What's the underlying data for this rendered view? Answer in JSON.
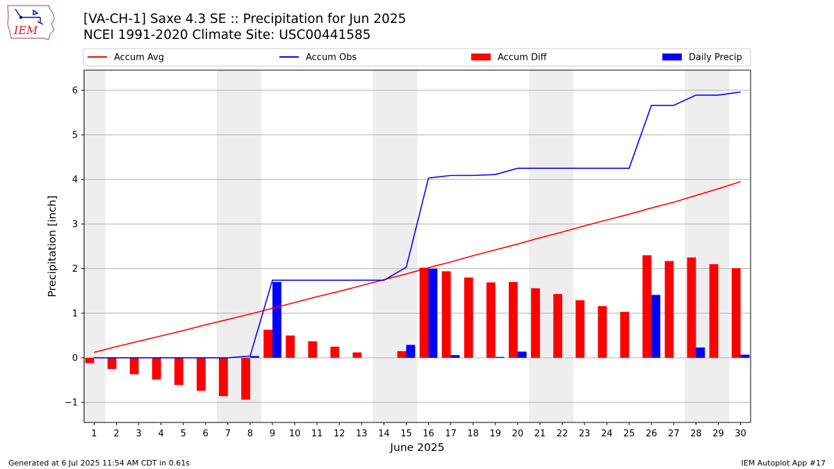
{
  "header": {
    "logo_text": "IEM",
    "title_line1": "[VA-CH-1] Saxe 4.3 SE :: Precipitation for Jun 2025",
    "title_line2": "NCEI 1991-2020 Climate Site: USC00441585"
  },
  "footer": {
    "left": "Generated at 6 Jul 2025 11:54 AM CDT in 0.61s",
    "right": "IEM Autoplot App #17"
  },
  "colors": {
    "accum_avg": "#ff0000",
    "accum_obs": "#0000ff",
    "accum_diff": "#ff0000",
    "daily_precip": "#0000ff",
    "weekend_shade": "#eeeeee",
    "grid": "#b0b0b0"
  },
  "chart_data": {
    "type": "bar",
    "xlabel": "June 2025",
    "ylabel": "Precipitation [inch]",
    "ylim": [
      -1.45,
      6.45
    ],
    "yticks": [
      -1,
      0,
      1,
      2,
      3,
      4,
      5,
      6
    ],
    "ytick_labels": [
      "−1",
      "0",
      "1",
      "2",
      "3",
      "4",
      "5",
      "6"
    ],
    "grid": "horizontal",
    "legend_position": "top",
    "legend": [
      {
        "label": "Accum Avg",
        "kind": "line",
        "series": "accum_avg"
      },
      {
        "label": "Accum Obs",
        "kind": "line",
        "series": "accum_obs"
      },
      {
        "label": "Accum Diff",
        "kind": "bar",
        "series": "accum_diff"
      },
      {
        "label": "Daily Precip",
        "kind": "bar",
        "series": "daily_precip"
      }
    ],
    "shaded_days": [
      [
        1,
        1
      ],
      [
        7,
        8
      ],
      [
        14,
        15
      ],
      [
        21,
        22
      ],
      [
        28,
        29
      ]
    ],
    "days": [
      1,
      2,
      3,
      4,
      5,
      6,
      7,
      8,
      9,
      10,
      11,
      12,
      13,
      14,
      15,
      16,
      17,
      18,
      19,
      20,
      21,
      22,
      23,
      24,
      25,
      26,
      27,
      28,
      29,
      30
    ],
    "series": {
      "accum_avg": [
        0.12,
        0.25,
        0.37,
        0.49,
        0.61,
        0.74,
        0.86,
        0.98,
        1.11,
        1.24,
        1.37,
        1.49,
        1.62,
        1.75,
        1.88,
        2.02,
        2.15,
        2.29,
        2.42,
        2.55,
        2.69,
        2.82,
        2.96,
        3.09,
        3.22,
        3.36,
        3.49,
        3.64,
        3.79,
        3.95
      ],
      "accum_obs": [
        0.0,
        0.0,
        0.0,
        0.0,
        0.0,
        0.0,
        0.0,
        0.04,
        1.74,
        1.74,
        1.74,
        1.74,
        1.74,
        1.74,
        2.03,
        4.03,
        4.09,
        4.09,
        4.11,
        4.25,
        4.25,
        4.25,
        4.25,
        4.25,
        4.25,
        5.66,
        5.66,
        5.89,
        5.89,
        5.96
      ],
      "accum_diff": [
        -0.12,
        -0.25,
        -0.37,
        -0.49,
        -0.61,
        -0.74,
        -0.86,
        -0.94,
        0.63,
        0.5,
        0.37,
        0.25,
        0.12,
        0.0,
        0.15,
        2.02,
        1.94,
        1.8,
        1.69,
        1.7,
        1.56,
        1.43,
        1.29,
        1.16,
        1.03,
        2.3,
        2.17,
        2.25,
        2.1,
        2.01
      ],
      "daily_precip": [
        0,
        0,
        0,
        0,
        0,
        0,
        0,
        0.04,
        1.7,
        0,
        0,
        0,
        0,
        0,
        0.29,
        2.0,
        0.06,
        0,
        0.02,
        0.14,
        0,
        0,
        0,
        0,
        0,
        1.41,
        0,
        0.23,
        0,
        0.07
      ]
    }
  }
}
